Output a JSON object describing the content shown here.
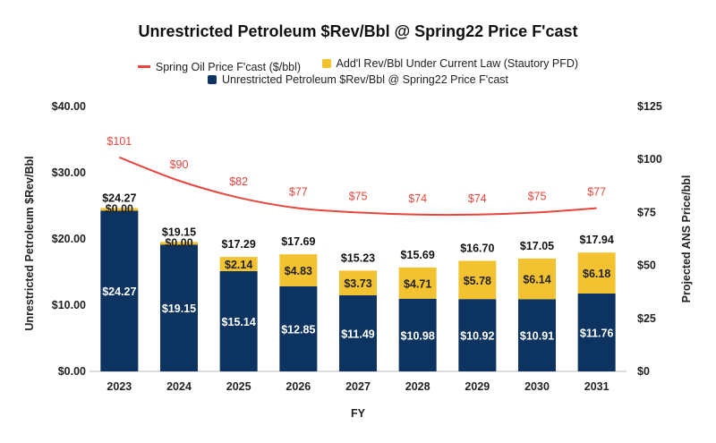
{
  "chart_data": {
    "type": "bar",
    "title": "Unrestricted Petroleum $Rev/Bbl @ Spring22 Price F'cast",
    "xlabel": "FY",
    "ylabel": "Unrestricted Petroleum $Rev/Bbl",
    "y2label": "Projected ANS Price/bbl",
    "ylim": [
      0,
      40
    ],
    "y2lim": [
      0,
      125
    ],
    "yticks": [
      "$0.00",
      "$10.00",
      "$20.00",
      "$30.00",
      "$40.00"
    ],
    "yticks_values": [
      0,
      10,
      20,
      30,
      40
    ],
    "y2ticks": [
      "$0",
      "$25",
      "$50",
      "$75",
      "$100",
      "$125"
    ],
    "y2ticks_values": [
      0,
      25,
      50,
      75,
      100,
      125
    ],
    "categories": [
      "2023",
      "2024",
      "2025",
      "2026",
      "2027",
      "2028",
      "2029",
      "2030",
      "2031"
    ],
    "legend_placement": "top",
    "grid": false,
    "series": [
      {
        "name": "Unrestricted Petroleum $Rev/Bbl @ Spring22 Price F'cast",
        "type": "bar",
        "stack": "base",
        "color": "#0d3461",
        "values": [
          24.27,
          19.15,
          15.14,
          12.85,
          11.49,
          10.98,
          10.92,
          10.91,
          11.76
        ],
        "labels": [
          "$24.27",
          "$19.15",
          "$15.14",
          "$12.85",
          "$11.49",
          "$10.98",
          "$10.92",
          "$10.91",
          "$11.76"
        ]
      },
      {
        "name": "Add'l Rev/Bbl Under Current Law (Stautory PFD)",
        "type": "bar",
        "stack": "top",
        "color": "#f2c231",
        "values": [
          0.0,
          0.0,
          2.14,
          4.83,
          3.73,
          4.71,
          5.78,
          6.14,
          6.18
        ],
        "labels": [
          "$0.00",
          "$0.00",
          "$2.14",
          "$4.83",
          "$3.73",
          "$4.71",
          "$5.78",
          "$6.14",
          "$6.18"
        ]
      },
      {
        "name": "Spring Oil Price F'cast ($/bbl)",
        "type": "line",
        "axis": "right",
        "color": "#e8453c",
        "values": [
          101,
          90,
          82,
          77,
          75,
          74,
          74,
          75,
          77
        ],
        "labels": [
          "$101",
          "$90",
          "$82",
          "$77",
          "$75",
          "$74",
          "$74",
          "$75",
          "$77"
        ]
      }
    ],
    "totals": [
      "$24.27",
      "$19.15",
      "$17.29",
      "$17.69",
      "$15.23",
      "$15.69",
      "$16.70",
      "$17.05",
      "$17.94"
    ],
    "totals_values": [
      24.27,
      19.15,
      17.29,
      17.69,
      15.23,
      15.69,
      16.7,
      17.05,
      17.94
    ]
  },
  "legend": {
    "line_label": "Spring Oil Price F'cast ($/bbl)",
    "yellow_label": "Add'l Rev/Bbl Under Current Law (Stautory PFD)",
    "navy_label": "Unrestricted Petroleum $Rev/Bbl @ Spring22 Price F'cast"
  }
}
